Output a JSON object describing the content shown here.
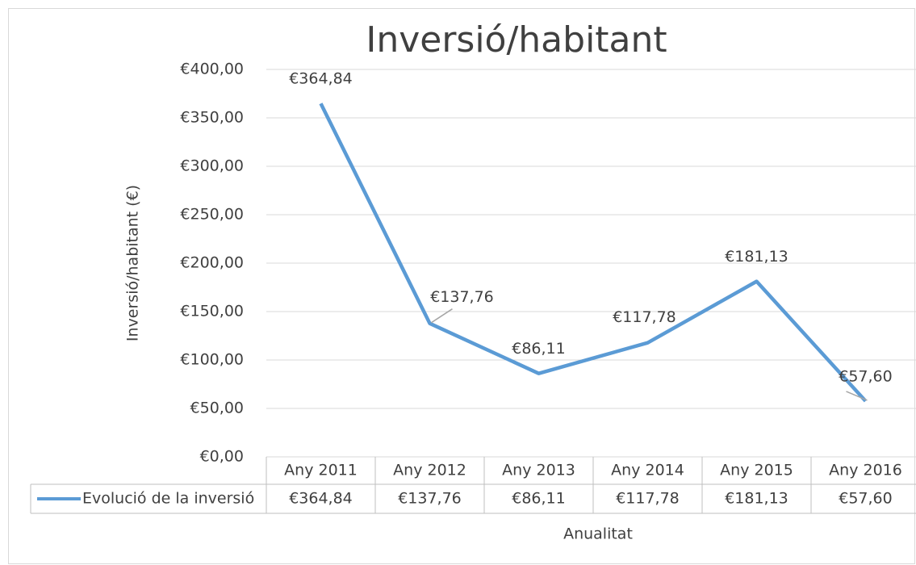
{
  "chart_data": {
    "type": "line",
    "title": "Inversió/habitant",
    "y_label": "Inversió/habitant (€)",
    "x_label": "Anualitat",
    "categories": [
      "Any 2011",
      "Any 2012",
      "Any 2013",
      "Any 2014",
      "Any 2015",
      "Any 2016"
    ],
    "series": [
      {
        "name": "Evolució de la inversió",
        "color": "#5b9bd5",
        "values": [
          364.84,
          137.76,
          86.11,
          117.78,
          181.13,
          57.6
        ],
        "value_labels": [
          "€364,84",
          "€137,76",
          "€86,11",
          "€117,78",
          "€181,13",
          "€57,60"
        ]
      }
    ],
    "ylim": [
      0,
      400
    ],
    "yticks": [
      {
        "value": 0,
        "label": "€0,00"
      },
      {
        "value": 50,
        "label": "€50,00"
      },
      {
        "value": 100,
        "label": "€100,00"
      },
      {
        "value": 150,
        "label": "€150,00"
      },
      {
        "value": 200,
        "label": "€200,00"
      },
      {
        "value": 250,
        "label": "€250,00"
      },
      {
        "value": 300,
        "label": "€300,00"
      },
      {
        "value": 350,
        "label": "€350,00"
      },
      {
        "value": 400,
        "label": "€400,00"
      }
    ],
    "grid": true
  }
}
